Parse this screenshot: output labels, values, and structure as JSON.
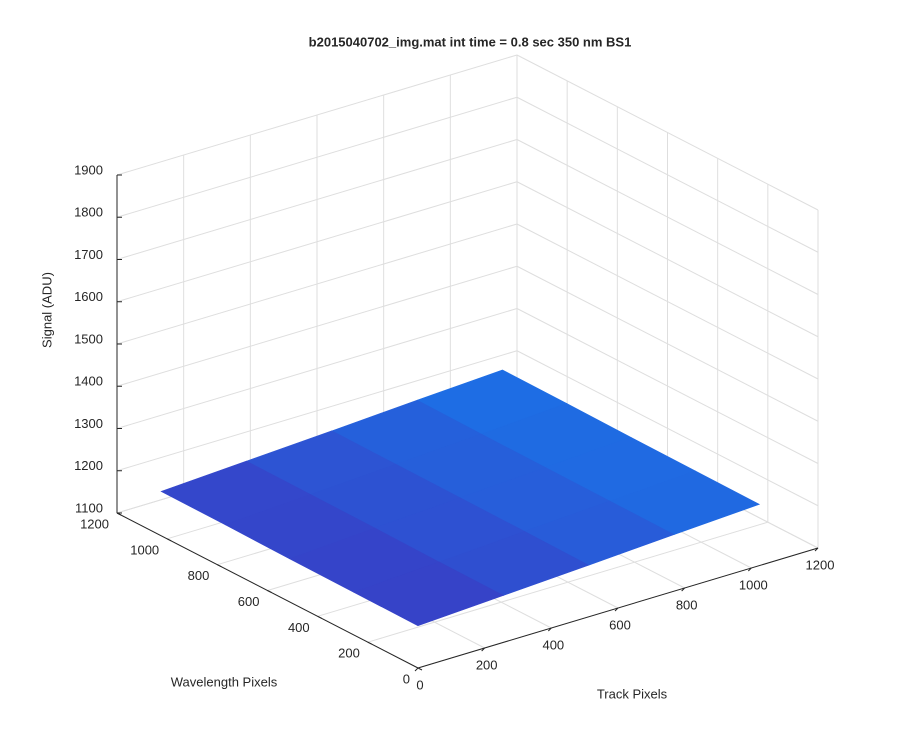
{
  "chart_data": {
    "type": "surface",
    "title": "b2015040702_img.mat int time = 0.8 sec  350 nm BS1",
    "xlabel": "Track Pixels",
    "ylabel": "Wavelength Pixels",
    "zlabel": "Signal (ADU)",
    "xlim": [
      0,
      1200
    ],
    "ylim": [
      0,
      1200
    ],
    "zlim": [
      1100,
      1900
    ],
    "xticks": [
      0,
      200,
      400,
      600,
      800,
      1000,
      1200
    ],
    "yticks": [
      0,
      200,
      400,
      600,
      800,
      1000,
      1200
    ],
    "zticks": [
      1100,
      1200,
      1300,
      1400,
      1500,
      1600,
      1700,
      1800,
      1900
    ],
    "grid": true,
    "colormap": [
      "#3a3cc4",
      "#1a74e8"
    ],
    "x": [
      0,
      256,
      512,
      768,
      1024
    ],
    "y": [
      0,
      256,
      512,
      768,
      1024
    ],
    "z": [
      [
        1200,
        1211,
        1222,
        1234,
        1245
      ],
      [
        1201,
        1212,
        1224,
        1235,
        1246
      ],
      [
        1202,
        1214,
        1225,
        1236,
        1247
      ],
      [
        1204,
        1215,
        1226,
        1237,
        1249
      ],
      [
        1205,
        1216,
        1227,
        1239,
        1250
      ]
    ]
  }
}
